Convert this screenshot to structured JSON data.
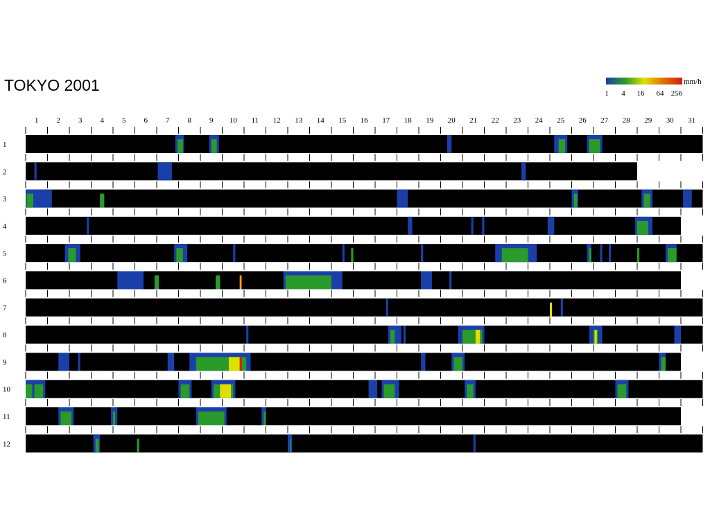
{
  "chart_data": {
    "type": "heatmap",
    "title": "TOKYO  2001",
    "legend": {
      "unit": "mm/h",
      "ticks": [
        "1",
        "4",
        "16",
        "64",
        "256"
      ],
      "colors": [
        "#1a3fa8",
        "#2a9a2a",
        "#e0e000",
        "#e07000",
        "#d02010"
      ]
    },
    "days_axis": [
      "1",
      "2",
      "3",
      "4",
      "5",
      "6",
      "7",
      "8",
      "9",
      "10",
      "11",
      "12",
      "13",
      "14",
      "15",
      "16",
      "17",
      "18",
      "19",
      "20",
      "21",
      "22",
      "23",
      "24",
      "25",
      "26",
      "27",
      "28",
      "29",
      "30",
      "31"
    ],
    "months": [
      {
        "label": "1",
        "days": 31,
        "rain": [
          [
            7.85,
            8.25,
            "b"
          ],
          [
            7.95,
            8.2,
            "g"
          ],
          [
            9.4,
            9.85,
            "b"
          ],
          [
            9.5,
            9.75,
            "g"
          ],
          [
            20.3,
            20.5,
            "b"
          ],
          [
            25.2,
            25.8,
            "b"
          ],
          [
            25.4,
            25.7,
            "g"
          ],
          [
            26.7,
            27.4,
            "b"
          ],
          [
            26.8,
            27.3,
            "g"
          ]
        ]
      },
      {
        "label": "2",
        "days": 28,
        "rain": [
          [
            1.4,
            1.5,
            "b"
          ],
          [
            7.05,
            7.7,
            "b"
          ],
          [
            23.7,
            23.9,
            "b"
          ]
        ]
      },
      {
        "label": "3",
        "days": 31,
        "rain": [
          [
            1.0,
            2.2,
            "b"
          ],
          [
            1.05,
            1.35,
            "g"
          ],
          [
            4.4,
            4.6,
            "g"
          ],
          [
            18.0,
            18.5,
            "b"
          ],
          [
            26.0,
            26.3,
            "b"
          ],
          [
            26.1,
            26.25,
            "g"
          ],
          [
            29.2,
            29.7,
            "b"
          ],
          [
            29.3,
            29.6,
            "g"
          ],
          [
            31.1,
            31.5,
            "b"
          ]
        ]
      },
      {
        "label": "4",
        "days": 30,
        "rain": [
          [
            3.8,
            3.9,
            "b"
          ],
          [
            18.5,
            18.7,
            "b"
          ],
          [
            21.4,
            21.5,
            "b"
          ],
          [
            21.9,
            22.0,
            "b"
          ],
          [
            24.9,
            25.2,
            "b"
          ],
          [
            28.9,
            29.7,
            "b"
          ],
          [
            29.0,
            29.5,
            "g"
          ]
        ]
      },
      {
        "label": "5",
        "days": 31,
        "rain": [
          [
            2.8,
            3.5,
            "b"
          ],
          [
            2.95,
            3.3,
            "g"
          ],
          [
            7.8,
            8.4,
            "b"
          ],
          [
            7.9,
            8.2,
            "g"
          ],
          [
            10.5,
            10.6,
            "b"
          ],
          [
            15.5,
            15.6,
            "b"
          ],
          [
            15.9,
            16.0,
            "g"
          ],
          [
            19.1,
            19.2,
            "b"
          ],
          [
            22.5,
            24.4,
            "b"
          ],
          [
            22.8,
            24.0,
            "g"
          ],
          [
            26.7,
            26.9,
            "b"
          ],
          [
            26.8,
            26.9,
            "g"
          ],
          [
            27.3,
            27.4,
            "b"
          ],
          [
            27.7,
            27.8,
            "b"
          ],
          [
            29.0,
            29.1,
            "g"
          ],
          [
            30.3,
            30.8,
            "b"
          ],
          [
            30.4,
            30.8,
            "g"
          ]
        ]
      },
      {
        "label": "6",
        "days": 30,
        "rain": [
          [
            5.2,
            6.4,
            "b"
          ],
          [
            6.9,
            7.1,
            "g"
          ],
          [
            9.7,
            9.9,
            "g"
          ],
          [
            10.8,
            10.9,
            "y"
          ],
          [
            10.85,
            10.9,
            "r"
          ],
          [
            12.8,
            15.5,
            "b"
          ],
          [
            12.9,
            15.0,
            "g"
          ],
          [
            19.1,
            19.6,
            "b"
          ],
          [
            20.4,
            20.5,
            "b"
          ]
        ]
      },
      {
        "label": "7",
        "days": 31,
        "rain": [
          [
            17.5,
            17.6,
            "b"
          ],
          [
            25.0,
            25.1,
            "y"
          ],
          [
            25.5,
            25.6,
            "b"
          ]
        ]
      },
      {
        "label": "8",
        "days": 31,
        "rain": [
          [
            11.1,
            11.2,
            "b"
          ],
          [
            17.6,
            18.2,
            "b"
          ],
          [
            17.7,
            17.9,
            "g"
          ],
          [
            18.3,
            18.4,
            "b"
          ],
          [
            20.8,
            22.0,
            "b"
          ],
          [
            21.0,
            21.9,
            "g"
          ],
          [
            21.6,
            21.8,
            "y"
          ],
          [
            26.8,
            27.4,
            "b"
          ],
          [
            27.0,
            27.2,
            "g"
          ],
          [
            27.05,
            27.15,
            "y"
          ],
          [
            30.7,
            31.0,
            "b"
          ]
        ]
      },
      {
        "label": "9",
        "days": 30,
        "rain": [
          [
            2.5,
            3.0,
            "b"
          ],
          [
            3.4,
            3.5,
            "b"
          ],
          [
            7.5,
            7.8,
            "b"
          ],
          [
            8.5,
            11.3,
            "b"
          ],
          [
            8.8,
            11.1,
            "g"
          ],
          [
            10.3,
            10.8,
            "y"
          ],
          [
            10.8,
            10.9,
            "r"
          ],
          [
            19.1,
            19.3,
            "b"
          ],
          [
            20.5,
            21.1,
            "b"
          ],
          [
            20.6,
            21.0,
            "g"
          ],
          [
            30.0,
            30.3,
            "b"
          ],
          [
            30.1,
            30.3,
            "g"
          ]
        ]
      },
      {
        "label": "10",
        "days": 31,
        "rain": [
          [
            1.0,
            1.9,
            "b"
          ],
          [
            1.0,
            1.3,
            "g"
          ],
          [
            1.4,
            1.8,
            "g"
          ],
          [
            8.0,
            8.6,
            "b"
          ],
          [
            8.1,
            8.5,
            "g"
          ],
          [
            9.5,
            10.6,
            "b"
          ],
          [
            9.6,
            10.5,
            "g"
          ],
          [
            9.9,
            10.4,
            "y"
          ],
          [
            16.7,
            17.1,
            "b"
          ],
          [
            17.3,
            18.1,
            "b"
          ],
          [
            17.4,
            17.9,
            "g"
          ],
          [
            21.1,
            21.6,
            "b"
          ],
          [
            21.2,
            21.5,
            "g"
          ],
          [
            28.0,
            28.6,
            "b"
          ],
          [
            28.1,
            28.5,
            "g"
          ]
        ]
      },
      {
        "label": "11",
        "days": 30,
        "rain": [
          [
            2.5,
            3.2,
            "b"
          ],
          [
            2.6,
            3.1,
            "g"
          ],
          [
            4.9,
            5.2,
            "b"
          ],
          [
            5.0,
            5.1,
            "g"
          ],
          [
            8.8,
            10.2,
            "b"
          ],
          [
            8.9,
            10.1,
            "g"
          ],
          [
            11.8,
            12.0,
            "b"
          ],
          [
            11.9,
            12.0,
            "g"
          ]
        ]
      },
      {
        "label": "12",
        "days": 31,
        "rain": [
          [
            4.1,
            4.4,
            "b"
          ],
          [
            4.2,
            4.35,
            "g"
          ],
          [
            6.1,
            6.2,
            "g"
          ],
          [
            13.0,
            13.2,
            "b"
          ],
          [
            13.1,
            13.15,
            "g"
          ],
          [
            21.5,
            21.6,
            "b"
          ]
        ]
      }
    ]
  }
}
